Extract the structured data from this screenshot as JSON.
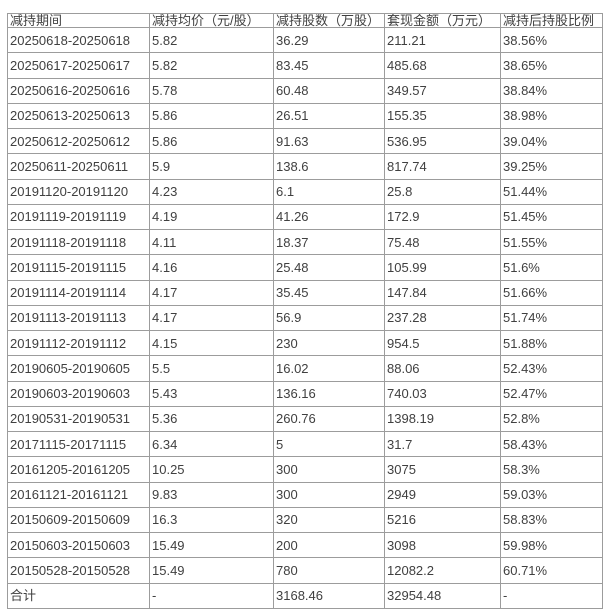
{
  "colors": {
    "border": "#9c9c9c",
    "text": "#404040",
    "background": "#ffffff"
  },
  "chart_data": {
    "type": "table",
    "title": "",
    "columns": [
      "减持期间",
      "减持均价（元/股）",
      "减持股数（万股）",
      "套现金额（万元）",
      "减持后持股比例"
    ],
    "rows": [
      [
        "20250618-20250618",
        "5.82",
        "36.29",
        "211.21",
        "38.56%"
      ],
      [
        "20250617-20250617",
        "5.82",
        "83.45",
        "485.68",
        "38.65%"
      ],
      [
        "20250616-20250616",
        "5.78",
        "60.48",
        "349.57",
        "38.84%"
      ],
      [
        "20250613-20250613",
        "5.86",
        "26.51",
        "155.35",
        "38.98%"
      ],
      [
        "20250612-20250612",
        "5.86",
        "91.63",
        "536.95",
        "39.04%"
      ],
      [
        "20250611-20250611",
        "5.9",
        "138.6",
        "817.74",
        "39.25%"
      ],
      [
        "20191120-20191120",
        "4.23",
        "6.1",
        "25.8",
        "51.44%"
      ],
      [
        "20191119-20191119",
        "4.19",
        "41.26",
        "172.9",
        "51.45%"
      ],
      [
        "20191118-20191118",
        "4.11",
        "18.37",
        "75.48",
        "51.55%"
      ],
      [
        "20191115-20191115",
        "4.16",
        "25.48",
        "105.99",
        "51.6%"
      ],
      [
        "20191114-20191114",
        "4.17",
        "35.45",
        "147.84",
        "51.66%"
      ],
      [
        "20191113-20191113",
        "4.17",
        "56.9",
        "237.28",
        "51.74%"
      ],
      [
        "20191112-20191112",
        "4.15",
        "230",
        "954.5",
        "51.88%"
      ],
      [
        "20190605-20190605",
        "5.5",
        "16.02",
        "88.06",
        "52.43%"
      ],
      [
        "20190603-20190603",
        "5.43",
        "136.16",
        "740.03",
        "52.47%"
      ],
      [
        "20190531-20190531",
        "5.36",
        "260.76",
        "1398.19",
        "52.8%"
      ],
      [
        "20171115-20171115",
        "6.34",
        "5",
        "31.7",
        "58.43%"
      ],
      [
        "20161205-20161205",
        "10.25",
        "300",
        "3075",
        "58.3%"
      ],
      [
        "20161121-20161121",
        "9.83",
        "300",
        "2949",
        "59.03%"
      ],
      [
        "20150609-20150609",
        "16.3",
        "320",
        "5216",
        "58.83%"
      ],
      [
        "20150603-20150603",
        "15.49",
        "200",
        "3098",
        "59.98%"
      ],
      [
        "20150528-20150528",
        "15.49",
        "780",
        "12082.2",
        "60.71%"
      ]
    ],
    "total_row": [
      "合计",
      "-",
      "3168.46",
      "32954.48",
      "-"
    ]
  }
}
